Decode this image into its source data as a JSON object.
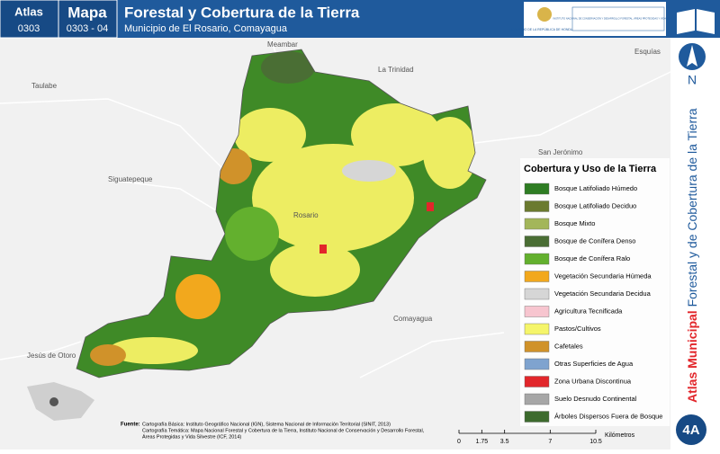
{
  "header": {
    "atlas_label": "Atlas",
    "atlas_code": "0303",
    "map_label": "Mapa",
    "map_code": "0303 - 04",
    "title": "Forestal y Cobertura de la Tierra",
    "subtitle": "Municipio de El Rosario, Comayagua",
    "logo_left": "GOBIERNO DE LA REPÚBLICA DE HONDURAS",
    "logo_right": "INSTITUTO NACIONAL DE CONSERVACIÓN Y DESARROLLO FORESTAL, ÁREAS PROTEGIDAS Y VIDA SILVESTRE ICF"
  },
  "place_labels": [
    "Meambar",
    "La Trinidad",
    "Esquías",
    "Taulabe",
    "San Jerónimo",
    "Siguatepeque",
    "Rosario",
    "Comayagua",
    "Jesús de Otoro"
  ],
  "north": "N",
  "side_title": {
    "bold": "Atlas Municipal",
    "normal": "Forestal y de Cobertura de la Tierra"
  },
  "legend": {
    "title": "Cobertura y Uso de la Tierra",
    "items": [
      {
        "label": "Bosque Latifoliado Húmedo",
        "color": "#2e7d23"
      },
      {
        "label": "Bosque Latifoliado Deciduo",
        "color": "#6b7a2f"
      },
      {
        "label": "Bosque Mixto",
        "color": "#a3b65a"
      },
      {
        "label": "Bosque de Conífera Denso",
        "color": "#4a6e34"
      },
      {
        "label": "Bosque de Conífera Ralo",
        "color": "#63b02e"
      },
      {
        "label": "Vegetación Secundaria Húmeda",
        "color": "#f2a81d"
      },
      {
        "label": "Vegetación Secundaria Decidua",
        "color": "#d6d6d6"
      },
      {
        "label": "Agricultura Tecnificada",
        "color": "#f7c5cf"
      },
      {
        "label": "Pastos/Cultivos",
        "color": "#f5f56a"
      },
      {
        "label": "Cafetales",
        "color": "#d0922a"
      },
      {
        "label": "Otras Superficies de Agua",
        "color": "#7fa3cf"
      },
      {
        "label": "Zona Urbana Discontinua",
        "color": "#e2262b"
      },
      {
        "label": "Suelo Desnudo Continental",
        "color": "#a6a6a6"
      },
      {
        "label": "Árboles Dispersos Fuera de Bosque",
        "color": "#3d6b2e"
      }
    ]
  },
  "scale": {
    "unit": "Kilómetros",
    "ticks": [
      0,
      1.75,
      3.5,
      7,
      10.5
    ]
  },
  "sources": {
    "label": "Fuente:",
    "lines": [
      "Cartografía Básica: Instituto Geográfico Nacional (IGN), Sistema Nacional de Información Territorial (SINIT, 2013)",
      "Cartografía Temática: Mapa Nacional Forestal y Cobertura de la Tierra, Instituto Nacional de Conservación y Desarrollo Forestal,",
      "Áreas Protegidas y Vida Silvestre (ICF, 2014)"
    ]
  },
  "badge": "4A"
}
